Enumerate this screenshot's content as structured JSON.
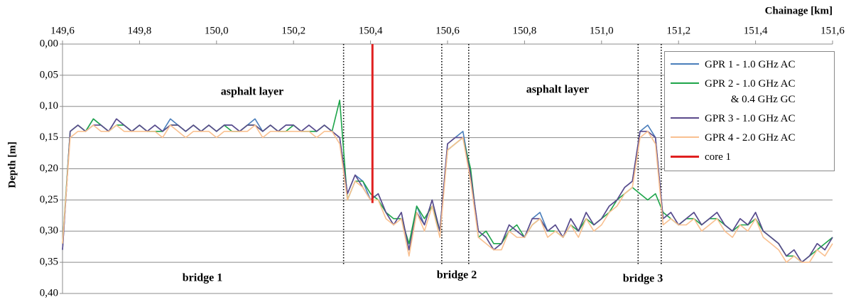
{
  "chart_data": {
    "type": "line",
    "x_label": "Chainage [km]",
    "y_label": "Depth [m]",
    "x_axis_position": "top",
    "y_inverted": true,
    "grid": true,
    "xlim": [
      149.6,
      151.6
    ],
    "xticks": [
      {
        "value": 149.6,
        "label": "149,6"
      },
      {
        "value": 149.8,
        "label": "149,8"
      },
      {
        "value": 150.0,
        "label": "150,0"
      },
      {
        "value": 150.2,
        "label": "150,2"
      },
      {
        "value": 150.4,
        "label": "150,4"
      },
      {
        "value": 150.6,
        "label": "150,6"
      },
      {
        "value": 150.8,
        "label": "150,8"
      },
      {
        "value": 151.0,
        "label": "151,0"
      },
      {
        "value": 151.2,
        "label": "151,2"
      },
      {
        "value": 151.4,
        "label": "151,4"
      },
      {
        "value": 151.6,
        "label": "151,6"
      }
    ],
    "ylim": [
      0,
      0.4
    ],
    "yticks": [
      {
        "value": 0,
        "label": "0,00"
      },
      {
        "value": 0.05,
        "label": "0,05"
      },
      {
        "value": 0.1,
        "label": "0,10"
      },
      {
        "value": 0.15,
        "label": "0,15"
      },
      {
        "value": 0.2,
        "label": "0,20"
      },
      {
        "value": 0.25,
        "label": "0,25"
      },
      {
        "value": 0.3,
        "label": "0,30"
      },
      {
        "value": 0.35,
        "label": "0,35"
      },
      {
        "value": 0.4,
        "label": "0,40"
      }
    ],
    "x": [
      149.6,
      149.62,
      149.64,
      149.66,
      149.68,
      149.7,
      149.72,
      149.74,
      149.76,
      149.78,
      149.8,
      149.82,
      149.84,
      149.86,
      149.88,
      149.9,
      149.92,
      149.94,
      149.96,
      149.98,
      150.0,
      150.02,
      150.04,
      150.06,
      150.08,
      150.1,
      150.12,
      150.14,
      150.16,
      150.18,
      150.2,
      150.22,
      150.24,
      150.26,
      150.28,
      150.3,
      150.32,
      150.34,
      150.36,
      150.38,
      150.4,
      150.42,
      150.44,
      150.46,
      150.48,
      150.5,
      150.52,
      150.54,
      150.56,
      150.58,
      150.6,
      150.62,
      150.64,
      150.66,
      150.68,
      150.7,
      150.72,
      150.74,
      150.76,
      150.78,
      150.8,
      150.82,
      150.84,
      150.86,
      150.88,
      150.9,
      150.92,
      150.94,
      150.96,
      150.98,
      151.0,
      151.02,
      151.04,
      151.06,
      151.08,
      151.1,
      151.12,
      151.14,
      151.16,
      151.18,
      151.2,
      151.22,
      151.24,
      151.26,
      151.28,
      151.3,
      151.32,
      151.34,
      151.36,
      151.38,
      151.4,
      151.42,
      151.44,
      151.46,
      151.48,
      151.5,
      151.52,
      151.54,
      151.56,
      151.58,
      151.6
    ],
    "series": [
      {
        "name": "GPR 1 - 1.0 GHz AC",
        "color": "#4a7ebb",
        "values": [
          0.33,
          0.14,
          0.13,
          0.14,
          0.12,
          0.13,
          0.14,
          0.12,
          0.13,
          0.14,
          0.13,
          0.14,
          0.13,
          0.14,
          0.12,
          0.13,
          0.14,
          0.13,
          0.14,
          0.13,
          0.14,
          0.13,
          0.13,
          0.14,
          0.13,
          0.12,
          0.14,
          0.13,
          0.14,
          0.13,
          0.13,
          0.14,
          0.13,
          0.14,
          0.13,
          0.14,
          0.15,
          0.24,
          0.21,
          0.22,
          0.25,
          0.24,
          0.27,
          0.29,
          0.27,
          0.33,
          0.26,
          0.29,
          0.25,
          0.3,
          0.16,
          0.15,
          0.14,
          0.21,
          0.3,
          0.31,
          0.33,
          0.32,
          0.29,
          0.3,
          0.31,
          0.28,
          0.27,
          0.3,
          0.29,
          0.31,
          0.28,
          0.3,
          0.27,
          0.29,
          0.28,
          0.26,
          0.25,
          0.23,
          0.22,
          0.14,
          0.13,
          0.15,
          0.28,
          0.27,
          0.29,
          0.28,
          0.27,
          0.29,
          0.28,
          0.27,
          0.29,
          0.3,
          0.28,
          0.29,
          0.27,
          0.3,
          0.31,
          0.32,
          0.34,
          0.33,
          0.35,
          0.34,
          0.32,
          0.33,
          0.31
        ]
      },
      {
        "name": "GPR 2 - 1.0 GHz AC\n& 0.4 GHz GC",
        "color": "#1ea54a",
        "values": [
          0.32,
          0.14,
          0.13,
          0.14,
          0.12,
          0.13,
          0.14,
          0.13,
          0.13,
          0.14,
          0.13,
          0.14,
          0.14,
          0.14,
          0.13,
          0.13,
          0.14,
          0.13,
          0.14,
          0.13,
          0.14,
          0.13,
          0.14,
          0.14,
          0.13,
          0.13,
          0.14,
          0.13,
          0.14,
          0.14,
          0.13,
          0.14,
          0.14,
          0.14,
          0.13,
          0.14,
          0.09,
          0.25,
          0.22,
          0.22,
          0.24,
          0.25,
          0.27,
          0.28,
          0.28,
          0.32,
          0.26,
          0.28,
          0.26,
          0.3,
          0.17,
          0.16,
          0.15,
          0.2,
          0.31,
          0.3,
          0.32,
          0.32,
          0.3,
          0.29,
          0.31,
          0.29,
          0.28,
          0.3,
          0.3,
          0.31,
          0.29,
          0.3,
          0.28,
          0.29,
          0.28,
          0.27,
          0.25,
          0.24,
          0.23,
          0.24,
          0.25,
          0.24,
          0.27,
          0.28,
          0.29,
          0.28,
          0.28,
          0.29,
          0.28,
          0.28,
          0.29,
          0.3,
          0.29,
          0.29,
          0.28,
          0.3,
          0.31,
          0.32,
          0.34,
          0.34,
          0.35,
          0.34,
          0.33,
          0.32,
          0.31
        ]
      },
      {
        "name": "GPR 3 - 1.0 GHz AC",
        "color": "#5b4a8b",
        "values": [
          0.33,
          0.14,
          0.13,
          0.14,
          0.13,
          0.13,
          0.14,
          0.12,
          0.13,
          0.14,
          0.13,
          0.14,
          0.13,
          0.14,
          0.13,
          0.13,
          0.14,
          0.13,
          0.14,
          0.13,
          0.14,
          0.13,
          0.13,
          0.14,
          0.13,
          0.13,
          0.14,
          0.13,
          0.14,
          0.13,
          0.13,
          0.14,
          0.13,
          0.14,
          0.13,
          0.14,
          0.15,
          0.24,
          0.21,
          0.23,
          0.25,
          0.24,
          0.27,
          0.29,
          0.27,
          0.33,
          0.27,
          0.29,
          0.25,
          0.3,
          0.16,
          0.15,
          0.15,
          0.21,
          0.3,
          0.31,
          0.33,
          0.32,
          0.29,
          0.3,
          0.31,
          0.28,
          0.28,
          0.3,
          0.29,
          0.31,
          0.28,
          0.3,
          0.27,
          0.29,
          0.28,
          0.26,
          0.25,
          0.23,
          0.22,
          0.14,
          0.14,
          0.15,
          0.28,
          0.27,
          0.29,
          0.28,
          0.27,
          0.29,
          0.28,
          0.27,
          0.29,
          0.3,
          0.28,
          0.29,
          0.27,
          0.3,
          0.31,
          0.32,
          0.34,
          0.33,
          0.35,
          0.34,
          0.32,
          0.33,
          0.31
        ]
      },
      {
        "name": "GPR 4 - 2.0 GHz AC",
        "color": "#f9c090",
        "values": [
          0.32,
          0.15,
          0.14,
          0.14,
          0.13,
          0.14,
          0.14,
          0.13,
          0.14,
          0.14,
          0.14,
          0.14,
          0.14,
          0.15,
          0.13,
          0.14,
          0.15,
          0.14,
          0.14,
          0.14,
          0.15,
          0.14,
          0.14,
          0.14,
          0.14,
          0.13,
          0.15,
          0.14,
          0.14,
          0.14,
          0.14,
          0.14,
          0.14,
          0.15,
          0.14,
          0.14,
          0.16,
          0.25,
          0.22,
          0.23,
          0.25,
          0.25,
          0.28,
          0.29,
          0.28,
          0.34,
          0.27,
          0.3,
          0.26,
          0.31,
          0.17,
          0.16,
          0.15,
          0.22,
          0.31,
          0.32,
          0.33,
          0.33,
          0.3,
          0.31,
          0.31,
          0.29,
          0.28,
          0.31,
          0.3,
          0.31,
          0.29,
          0.31,
          0.28,
          0.3,
          0.29,
          0.27,
          0.26,
          0.24,
          0.23,
          0.15,
          0.14,
          0.16,
          0.29,
          0.28,
          0.29,
          0.29,
          0.28,
          0.3,
          0.29,
          0.28,
          0.3,
          0.31,
          0.29,
          0.3,
          0.28,
          0.31,
          0.32,
          0.33,
          0.35,
          0.34,
          0.35,
          0.35,
          0.33,
          0.34,
          0.32
        ]
      },
      {
        "name": "core 1",
        "color": "#e02020",
        "x": [
          150.405,
          150.405
        ],
        "values": [
          0,
          0.255
        ]
      }
    ],
    "boundaries": [
      150.33,
      150.585,
      150.655,
      151.095,
      151.155
    ],
    "annotations": [
      "asphalt layer",
      "asphalt layer",
      "bridge 1",
      "bridge 2",
      "bridge 3"
    ]
  }
}
